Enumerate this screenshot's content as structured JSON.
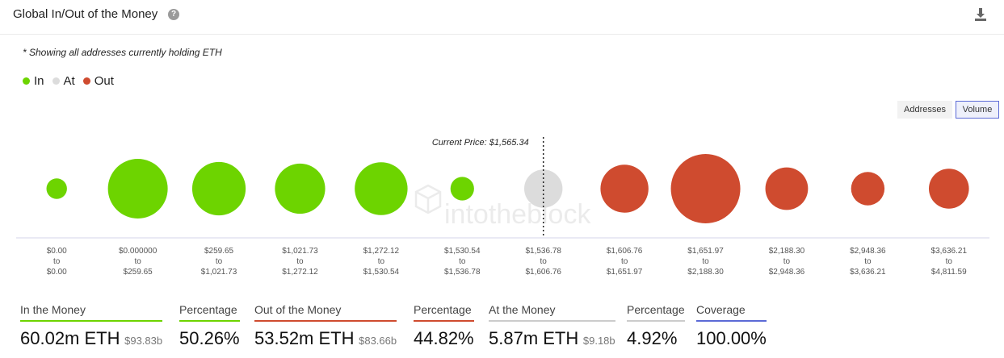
{
  "header": {
    "title": "Global In/Out of the Money",
    "help_glyph": "?"
  },
  "note": "* Showing all addresses currently holding ETH",
  "legend": [
    {
      "label": "In",
      "color": "#6dd400"
    },
    {
      "label": "At",
      "color": "#dcdcdc"
    },
    {
      "label": "Out",
      "color": "#cf4b2f"
    }
  ],
  "toggles": {
    "addresses": "Addresses",
    "volume": "Volume",
    "active": "volume"
  },
  "watermark": "intotheblock",
  "chart_data": {
    "type": "bubble",
    "metric": "volume",
    "current_price_label": "Current Price: $1,565.34",
    "current_price": 1565.34,
    "bins": [
      {
        "from": "$0.00",
        "to": "$0.00",
        "status": "in",
        "size": 0.6
      },
      {
        "from": "$0.000000",
        "to": "$259.65",
        "status": "in",
        "size": 5.1
      },
      {
        "from": "$259.65",
        "to": "$1,021.73",
        "status": "in",
        "size": 4.1
      },
      {
        "from": "$1,021.73",
        "to": "$1,272.12",
        "status": "in",
        "size": 3.6
      },
      {
        "from": "$1,272.12",
        "to": "$1,530.54",
        "status": "in",
        "size": 4.0
      },
      {
        "from": "$1,530.54",
        "to": "$1,536.78",
        "status": "in",
        "size": 0.8
      },
      {
        "from": "$1,536.78",
        "to": "$1,606.76",
        "status": "at",
        "size": 2.1
      },
      {
        "from": "$1,606.76",
        "to": "$1,651.97",
        "status": "out",
        "size": 3.3
      },
      {
        "from": "$1,651.97",
        "to": "$2,188.30",
        "status": "out",
        "size": 6.9
      },
      {
        "from": "$2,188.30",
        "to": "$2,948.36",
        "status": "out",
        "size": 2.6
      },
      {
        "from": "$2,948.36",
        "to": "$3,636.21",
        "status": "out",
        "size": 1.6
      },
      {
        "from": "$3,636.21",
        "to": "$4,811.59",
        "status": "out",
        "size": 2.3
      }
    ],
    "to_word": "to"
  },
  "stats": [
    {
      "label": "In the Money",
      "value": "60.02m ETH",
      "sub": "$93.83b",
      "color": "#6dd400"
    },
    {
      "label": "Percentage",
      "value": "50.26%",
      "sub": "",
      "color": "#6dd400"
    },
    {
      "label": "Out of the Money",
      "value": "53.52m ETH",
      "sub": "$83.66b",
      "color": "#cf4b2f"
    },
    {
      "label": "Percentage",
      "value": "44.82%",
      "sub": "",
      "color": "#cf4b2f"
    },
    {
      "label": "At the Money",
      "value": "5.87m ETH",
      "sub": "$9.18b",
      "color": "#cccccc"
    },
    {
      "label": "Percentage",
      "value": "4.92%",
      "sub": "",
      "color": "#cccccc"
    },
    {
      "label": "Coverage",
      "value": "100.00%",
      "sub": "",
      "color": "#5b6ad6"
    }
  ]
}
